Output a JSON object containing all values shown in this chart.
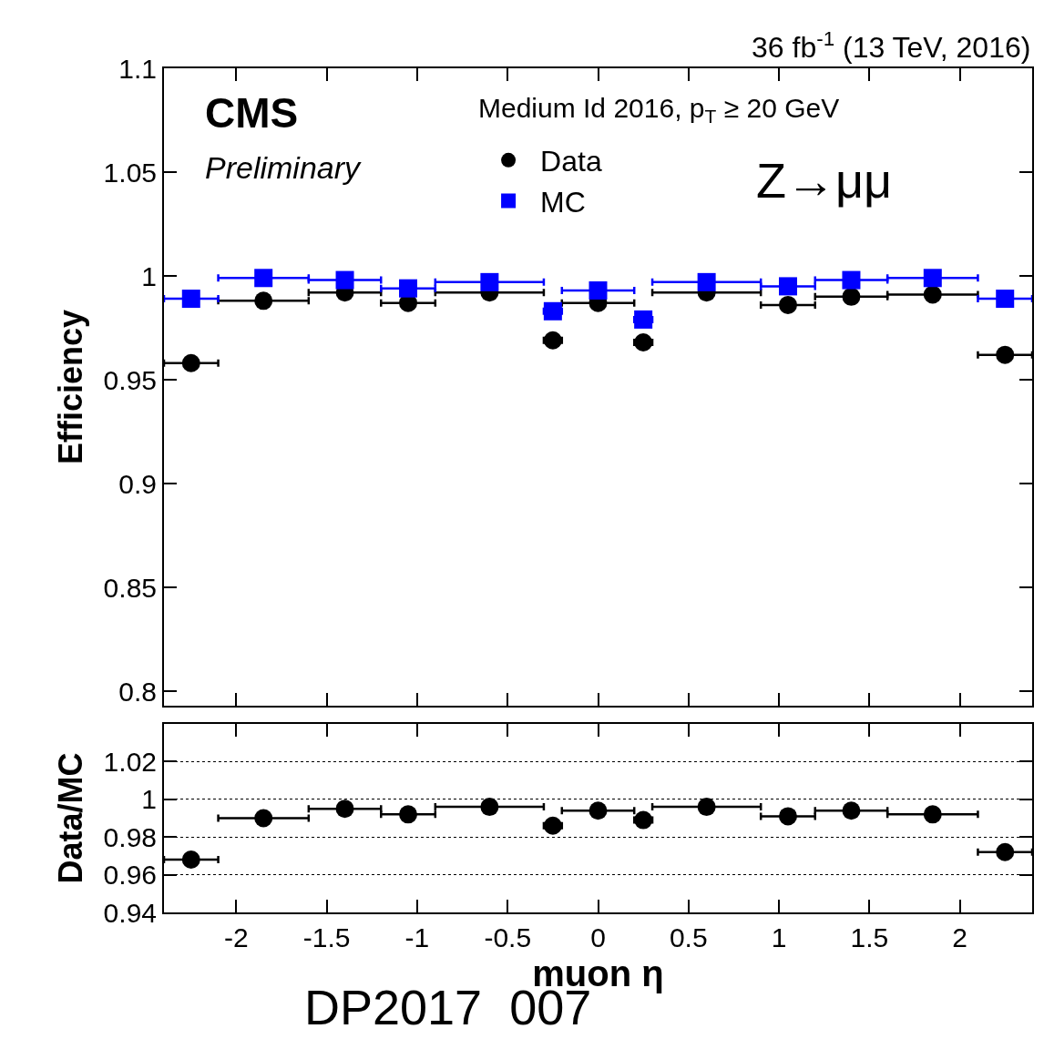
{
  "chart_data": [
    {
      "type": "scatter",
      "ylabel": "Efficiency",
      "annotations": [
        "36 fb$^{-1}$ (13 TeV, 2016)",
        "CMS",
        "Preliminary",
        "Medium Id 2016, p$_{T}$ ≥ 20 GeV",
        "Z→μμ"
      ],
      "x": [
        -2.25,
        -1.85,
        -1.4,
        -1.05,
        -0.6,
        -0.25,
        0,
        0.25,
        0.6,
        1.05,
        1.4,
        1.85,
        2.25
      ],
      "series": [
        {
          "name": "Data",
          "color": "#000000",
          "marker": "circle",
          "values": [
            0.958,
            0.988,
            0.992,
            0.987,
            0.992,
            0.969,
            0.987,
            0.968,
            0.992,
            0.986,
            0.99,
            0.991,
            0.962
          ],
          "xerrors": [
            0.15,
            0.25,
            0.2,
            0.15,
            0.3,
            0.05,
            0.2,
            0.05,
            0.3,
            0.15,
            0.2,
            0.25,
            0.15
          ]
        },
        {
          "name": "MC",
          "color": "#0000ff",
          "marker": "square",
          "values": [
            0.989,
            0.999,
            0.998,
            0.994,
            0.997,
            0.983,
            0.993,
            0.979,
            0.997,
            0.995,
            0.998,
            0.999,
            0.989
          ],
          "xerrors": [
            0.15,
            0.25,
            0.2,
            0.15,
            0.3,
            0.05,
            0.2,
            0.05,
            0.3,
            0.15,
            0.2,
            0.25,
            0.15
          ]
        }
      ],
      "xlim": [
        -2.4,
        2.4
      ],
      "xticks": [
        -2,
        -1.5,
        -1,
        -0.5,
        0,
        0.5,
        1,
        1.5,
        2
      ],
      "ylim": [
        0.793,
        1.1
      ],
      "yticks": [
        0.8,
        0.85,
        0.9,
        0.95,
        1,
        1.05,
        1.1
      ],
      "legend": "top",
      "tick_labels": "y"
    },
    {
      "type": "scatter",
      "xlabel": "muon η",
      "ylabel": "Data/MC",
      "annotations": [
        "DP2017  007"
      ],
      "x": [
        -2.25,
        -1.85,
        -1.4,
        -1.05,
        -0.6,
        -0.25,
        0,
        0.25,
        0.6,
        1.05,
        1.4,
        1.85,
        2.25
      ],
      "series": [
        {
          "color": "#000000",
          "marker": "circle",
          "values": [
            0.968,
            0.99,
            0.995,
            0.992,
            0.996,
            0.986,
            0.994,
            0.989,
            0.996,
            0.991,
            0.994,
            0.992,
            0.972
          ],
          "xerrors": [
            0.15,
            0.25,
            0.2,
            0.15,
            0.3,
            0.05,
            0.2,
            0.05,
            0.3,
            0.15,
            0.2,
            0.25,
            0.15
          ]
        }
      ],
      "xlim": [
        -2.4,
        2.4
      ],
      "xticks": [
        -2,
        -1.5,
        -1,
        -0.5,
        0,
        0.5,
        1,
        1.5,
        2
      ],
      "ylim": [
        0.94,
        1.04
      ],
      "yticks": [
        0.94,
        0.96,
        0.98,
        1,
        1.02
      ],
      "grid": "y"
    }
  ]
}
